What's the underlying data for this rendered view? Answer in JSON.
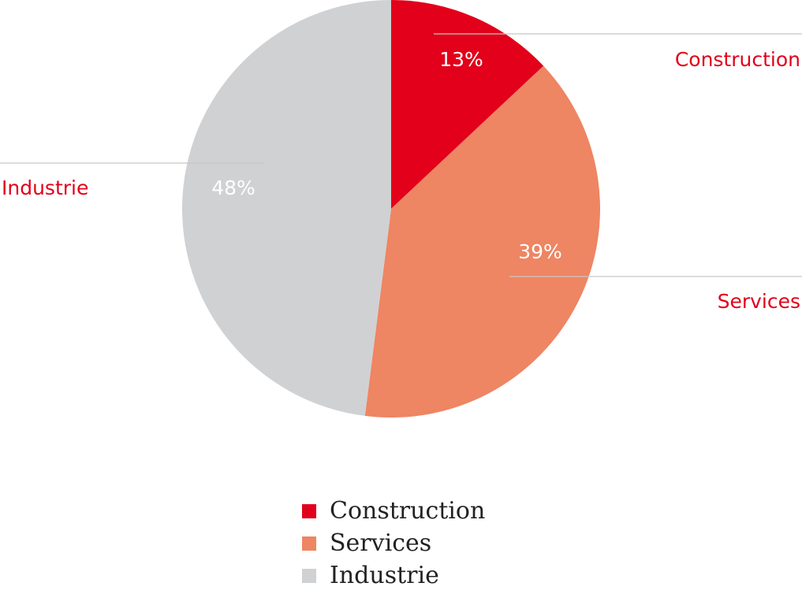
{
  "chart_data": {
    "type": "pie",
    "slices": [
      {
        "label": "Construction",
        "value": 13,
        "display": "13%",
        "color": "#e2001a"
      },
      {
        "label": "Services",
        "value": 39,
        "display": "39%",
        "color": "#ee8563"
      },
      {
        "label": "Industrie",
        "value": 48,
        "display": "48%",
        "color": "#d0d1d3"
      }
    ],
    "callout_color": "#e2001a",
    "legend_placement": "bottom",
    "legend": [
      {
        "label": "Construction",
        "color": "#e2001a"
      },
      {
        "label": "Services",
        "color": "#ee8563"
      },
      {
        "label": "Industrie",
        "color": "#d0d1d3"
      }
    ]
  }
}
